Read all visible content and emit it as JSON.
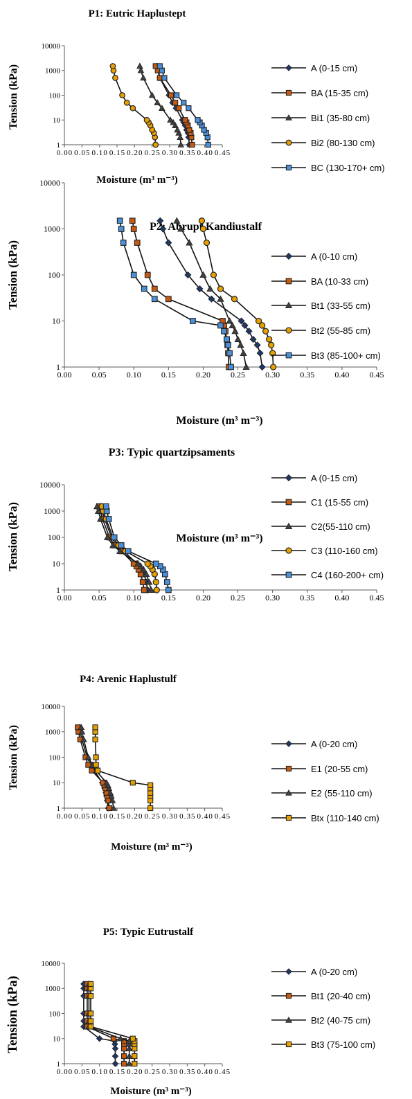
{
  "chart_data": [
    {
      "type": "line",
      "title": "P1: Eutric Haplustept",
      "xlabel": "Moisture (m³ m⁻³)",
      "ylabel": "Tension (kPa)",
      "xlim": [
        0,
        0.45
      ],
      "ylim": [
        1,
        10000
      ],
      "yscale": "log",
      "x_ticks": [
        "0.00",
        "0.05",
        "0.10",
        "0.15",
        "0.20",
        "0.25",
        "0.30",
        "0.35",
        "0.40",
        "0.45"
      ],
      "y_ticks": [
        "1",
        "10",
        "100",
        "1000",
        "10000"
      ],
      "tension_kpa": [
        1,
        2,
        3,
        4,
        6,
        8,
        10,
        30,
        50,
        100,
        500,
        1000,
        1500
      ],
      "legend_position": "right",
      "series": [
        {
          "name": "A (0-15 cm)",
          "marker": "diamond",
          "color": "#1f3864",
          "values": [
            0.356,
            0.354,
            0.352,
            0.348,
            0.344,
            0.34,
            0.336,
            0.318,
            0.308,
            0.298,
            0.272,
            0.268,
            0.263
          ]
        },
        {
          "name": "BA (15-35 cm)",
          "marker": "square",
          "color": "#c55a11",
          "values": [
            0.364,
            0.362,
            0.36,
            0.356,
            0.352,
            0.348,
            0.344,
            0.326,
            0.316,
            0.304,
            0.272,
            0.266,
            0.26
          ]
        },
        {
          "name": "Bi1 (35-80 cm)",
          "marker": "triangle",
          "color": "#404040",
          "values": [
            0.332,
            0.33,
            0.326,
            0.322,
            0.316,
            0.31,
            0.302,
            0.278,
            0.265,
            0.25,
            0.225,
            0.218,
            0.215
          ]
        },
        {
          "name": "Bi2 (80-130 cm)",
          "marker": "circle",
          "color": "#e6a100",
          "values": [
            0.26,
            0.258,
            0.255,
            0.25,
            0.245,
            0.24,
            0.235,
            0.195,
            0.178,
            0.165,
            0.145,
            0.14,
            0.138
          ]
        },
        {
          "name": "BC (130-170+ cm)",
          "marker": "square",
          "color": "#4a90d9",
          "values": [
            0.41,
            0.408,
            0.404,
            0.398,
            0.392,
            0.386,
            0.38,
            0.354,
            0.34,
            0.32,
            0.285,
            0.278,
            0.272
          ]
        }
      ]
    },
    {
      "type": "line",
      "title": "P2: Abrupt Kandiustalf",
      "xlabel": "Moisture (m³ m⁻³)",
      "ylabel": "Tension (kPa)",
      "xlim": [
        0,
        0.45
      ],
      "ylim": [
        1,
        10000
      ],
      "yscale": "log",
      "x_ticks": [
        "0.00",
        "0.05",
        "0.10",
        "0.15",
        "0.20",
        "0.25",
        "0.30",
        "0.35",
        "0.40",
        "0.45"
      ],
      "y_ticks": [
        "1",
        "10",
        "100",
        "1000",
        "10000"
      ],
      "tension_kpa": [
        1,
        2,
        3,
        4,
        6,
        8,
        10,
        30,
        50,
        100,
        500,
        1000,
        1500
      ],
      "legend_position": "right",
      "series": [
        {
          "name": "A (0-10 cm)",
          "marker": "diamond",
          "color": "#1f3864",
          "values": [
            0.285,
            0.282,
            0.278,
            0.272,
            0.266,
            0.26,
            0.255,
            0.212,
            0.195,
            0.178,
            0.15,
            0.142,
            0.138
          ]
        },
        {
          "name": "BA (10-33 cm)",
          "marker": "square",
          "color": "#c55a11",
          "values": [
            0.237,
            0.236,
            0.235,
            0.234,
            0.232,
            0.23,
            0.228,
            0.15,
            0.13,
            0.12,
            0.105,
            0.1,
            0.098
          ]
        },
        {
          "name": "Bt1 (33-55 cm)",
          "marker": "triangle",
          "color": "#404040",
          "values": [
            0.262,
            0.258,
            0.254,
            0.25,
            0.246,
            0.242,
            0.238,
            0.225,
            0.21,
            0.2,
            0.18,
            0.168,
            0.162
          ]
        },
        {
          "name": "Bt2 (55-85 cm)",
          "marker": "circle",
          "color": "#e6a100",
          "values": [
            0.301,
            0.3,
            0.298,
            0.295,
            0.29,
            0.285,
            0.28,
            0.245,
            0.225,
            0.215,
            0.205,
            0.2,
            0.198
          ]
        },
        {
          "name": "Bt3 (85-100+ cm)",
          "marker": "square",
          "color": "#4a90d9",
          "values": [
            0.24,
            0.238,
            0.236,
            0.234,
            0.23,
            0.225,
            0.185,
            0.13,
            0.115,
            0.1,
            0.085,
            0.082,
            0.08
          ]
        }
      ]
    },
    {
      "type": "line",
      "title": "P3: Typic quartzipsaments",
      "xlabel": "Moisture (m³ m⁻³)",
      "ylabel": "Tension (kPa)",
      "xlim": [
        0,
        0.45
      ],
      "ylim": [
        1,
        10000
      ],
      "yscale": "log",
      "x_ticks": [
        "0.00",
        "0.05",
        "0.10",
        "0.15",
        "0.20",
        "0.25",
        "0.30",
        "0.35",
        "0.40",
        "0.45"
      ],
      "y_ticks": [
        "1",
        "10",
        "100",
        "1000",
        "10000"
      ],
      "tension_kpa": [
        1,
        2,
        4,
        6,
        8,
        10,
        30,
        50,
        100,
        500,
        1000,
        1500
      ],
      "legend_position": "right",
      "series": [
        {
          "name": "A (0-15 cm)",
          "marker": "diamond",
          "color": "#1f3864",
          "values": [
            0.12,
            0.118,
            0.115,
            0.112,
            0.108,
            0.105,
            0.085,
            0.075,
            0.068,
            0.058,
            0.054,
            0.052
          ]
        },
        {
          "name": "C1 (15-55 cm)",
          "marker": "square",
          "color": "#c55a11",
          "values": [
            0.115,
            0.113,
            0.11,
            0.107,
            0.104,
            0.1,
            0.082,
            0.072,
            0.065,
            0.055,
            0.052,
            0.05
          ]
        },
        {
          "name": "C2(55-110 cm)",
          "marker": "triangle",
          "color": "#404040",
          "values": [
            0.125,
            0.122,
            0.118,
            0.114,
            0.11,
            0.106,
            0.08,
            0.07,
            0.062,
            0.052,
            0.049,
            0.047
          ]
        },
        {
          "name": "C3 (110-160 cm)",
          "marker": "circle",
          "color": "#e6a100",
          "values": [
            0.133,
            0.132,
            0.13,
            0.127,
            0.124,
            0.12,
            0.088,
            0.078,
            0.07,
            0.06,
            0.056,
            0.054
          ]
        },
        {
          "name": "C4 (160-200+ cm)",
          "marker": "square",
          "color": "#4a90d9",
          "values": [
            0.15,
            0.148,
            0.145,
            0.142,
            0.138,
            0.132,
            0.092,
            0.082,
            0.072,
            0.064,
            0.061,
            0.06
          ]
        }
      ]
    },
    {
      "type": "line",
      "title": "P4: Arenic Haplustulf",
      "xlabel": "Moisture (m³ m⁻³)",
      "ylabel": "Tension (kPa)",
      "xlim": [
        0,
        0.45
      ],
      "ylim": [
        1,
        10000
      ],
      "yscale": "log",
      "x_ticks": [
        "0.00",
        "0.05",
        "0.10",
        "0.15",
        "0.20",
        "0.25",
        "0.30",
        "0.35",
        "0.40",
        "0.45"
      ],
      "y_ticks": [
        "1",
        "10",
        "100",
        "1000",
        "10000"
      ],
      "tension_kpa": [
        1,
        2,
        3,
        4,
        6,
        8,
        10,
        30,
        50,
        100,
        500,
        1000,
        1500
      ],
      "legend_position": "right",
      "series": [
        {
          "name": "A (0-20 cm)",
          "marker": "diamond",
          "color": "#1f3864",
          "values": [
            0.125,
            0.122,
            0.12,
            0.118,
            0.115,
            0.112,
            0.108,
            0.085,
            0.075,
            0.065,
            0.05,
            0.045,
            0.043
          ]
        },
        {
          "name": "E1 (20-55 cm)",
          "marker": "square",
          "color": "#c55a11",
          "values": [
            0.128,
            0.125,
            0.122,
            0.12,
            0.117,
            0.114,
            0.11,
            0.078,
            0.068,
            0.06,
            0.045,
            0.04,
            0.038
          ]
        },
        {
          "name": "E2 (55-110 cm)",
          "marker": "triangle",
          "color": "#404040",
          "values": [
            0.14,
            0.137,
            0.134,
            0.131,
            0.127,
            0.124,
            0.12,
            0.09,
            0.08,
            0.068,
            0.055,
            0.05,
            0.048
          ]
        },
        {
          "name": "Btx (110-140 cm)",
          "marker": "square",
          "color": "#e6a100",
          "values": [
            0.245,
            0.245,
            0.245,
            0.245,
            0.245,
            0.245,
            0.195,
            0.095,
            0.09,
            0.09,
            0.088,
            0.088,
            0.088
          ]
        }
      ]
    },
    {
      "type": "line",
      "title": "P5: Typic Eutrustalf",
      "xlabel": "Moisture (m³ m⁻³)",
      "ylabel": "Tension (kPa)",
      "xlim": [
        0,
        0.45
      ],
      "ylim": [
        1,
        10000
      ],
      "yscale": "log",
      "x_ticks": [
        "0.00",
        "0.05",
        "0.10",
        "0.15",
        "0.20",
        "0.25",
        "0.30",
        "0.35",
        "0.40",
        "0.45"
      ],
      "y_ticks": [
        "1",
        "10",
        "100",
        "1000",
        "10000"
      ],
      "tension_kpa": [
        1,
        2,
        4,
        6,
        8,
        10,
        30,
        50,
        100,
        500,
        1000,
        1500
      ],
      "legend_position": "right",
      "series": [
        {
          "name": "A (0-20 cm)",
          "marker": "diamond",
          "color": "#1f3864",
          "values": [
            0.145,
            0.145,
            0.145,
            0.144,
            0.143,
            0.1,
            0.055,
            0.055,
            0.055,
            0.055,
            0.055,
            0.055
          ]
        },
        {
          "name": "Bt1 (20-40 cm)",
          "marker": "square",
          "color": "#c55a11",
          "values": [
            0.17,
            0.17,
            0.17,
            0.17,
            0.17,
            0.14,
            0.065,
            0.065,
            0.065,
            0.065,
            0.065,
            0.065
          ]
        },
        {
          "name": "Bt2 (40-75 cm)",
          "marker": "triangle",
          "color": "#404040",
          "values": [
            0.185,
            0.185,
            0.185,
            0.185,
            0.185,
            0.16,
            0.07,
            0.07,
            0.07,
            0.07,
            0.07,
            0.07
          ]
        },
        {
          "name": "Bt3 (75-100 cm)",
          "marker": "square",
          "color": "#e6a100",
          "values": [
            0.2,
            0.2,
            0.2,
            0.2,
            0.2,
            0.195,
            0.075,
            0.075,
            0.075,
            0.075,
            0.075,
            0.075
          ]
        }
      ]
    }
  ]
}
